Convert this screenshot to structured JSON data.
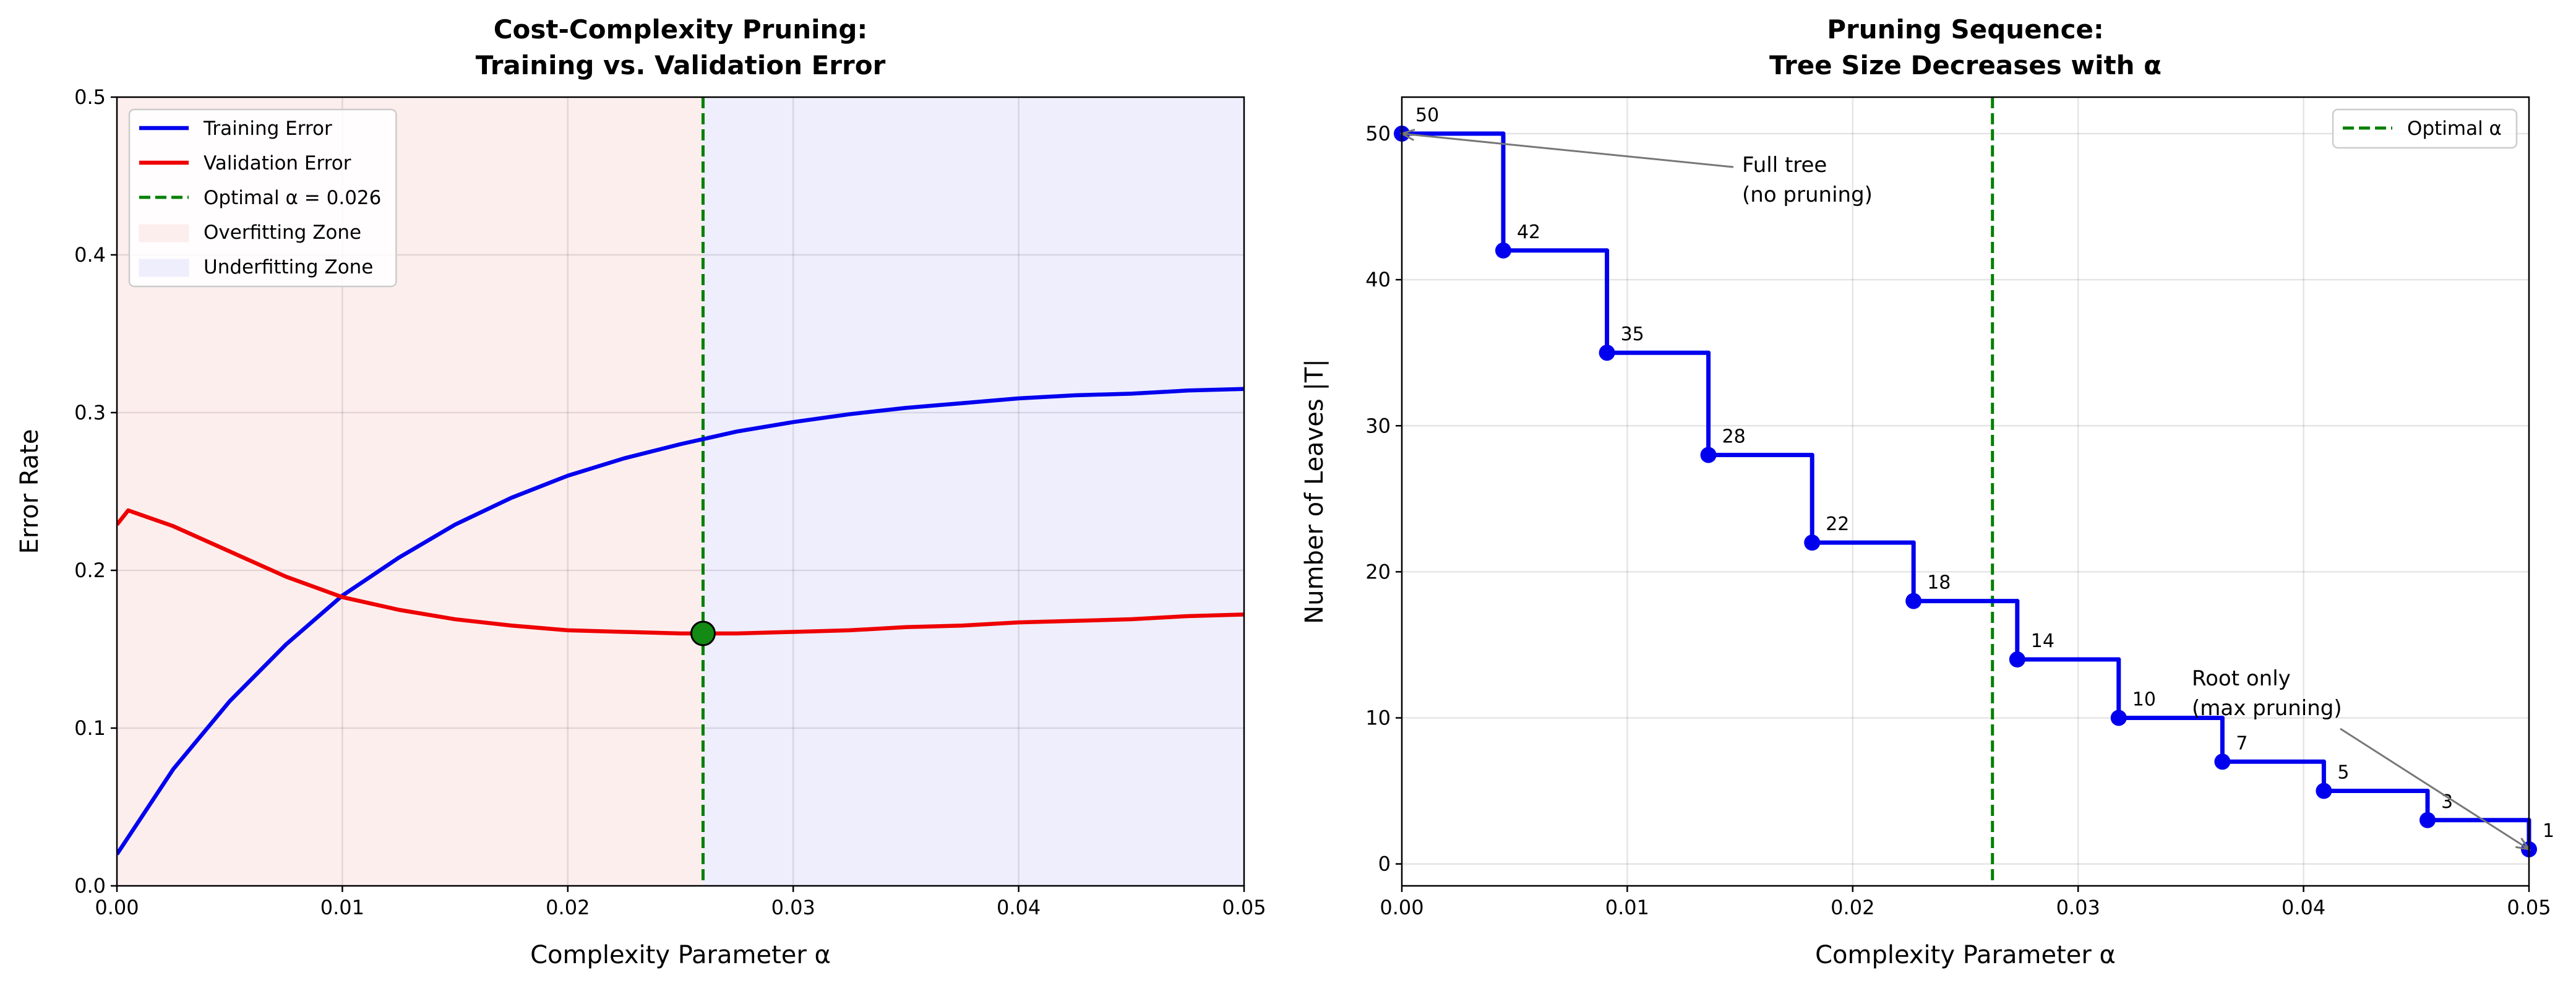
{
  "chart_data": [
    {
      "type": "line",
      "title": [
        "Cost-Complexity Pruning:",
        "Training vs. Validation Error"
      ],
      "xlabel": "Complexity Parameter α",
      "ylabel": "Error Rate",
      "xlim": [
        0,
        0.05
      ],
      "xticks": [
        {
          "value": 0,
          "label": "0.00"
        },
        0.01,
        0.02,
        0.03,
        0.04,
        0.05
      ],
      "ylim": [
        0,
        0.5
      ],
      "yticks": [
        {
          "value": 0,
          "label": "0.0"
        },
        0.1,
        0.2,
        0.3,
        0.4,
        0.5
      ],
      "grid": true,
      "legend": "upper left",
      "series": [
        {
          "name": "Training Error",
          "color": "#0000ee",
          "x": [
            0,
            0.0025,
            0.005,
            0.0075,
            0.01,
            0.0125,
            0.015,
            0.0175,
            0.02,
            0.0225,
            0.025,
            0.0275,
            0.03,
            0.0325,
            0.035,
            0.0375,
            0.04,
            0.0425,
            0.045,
            0.0475,
            0.05
          ],
          "values": [
            0.02,
            0.074,
            0.117,
            0.153,
            0.184,
            0.208,
            0.229,
            0.246,
            0.26,
            0.271,
            0.28,
            0.288,
            0.294,
            0.299,
            0.303,
            0.306,
            0.309,
            0.311,
            0.312,
            0.314,
            0.315
          ]
        },
        {
          "name": "Validation Error",
          "color": "#ee0000",
          "x": [
            0,
            0.0005,
            0.0025,
            0.005,
            0.0075,
            0.01,
            0.0125,
            0.015,
            0.0175,
            0.02,
            0.0225,
            0.025,
            0.0275,
            0.03,
            0.0325,
            0.035,
            0.0375,
            0.04,
            0.0425,
            0.045,
            0.0475,
            0.05
          ],
          "values": [
            0.229,
            0.238,
            0.228,
            0.212,
            0.196,
            0.183,
            0.175,
            0.169,
            0.165,
            0.162,
            0.161,
            0.16,
            0.16,
            0.161,
            0.162,
            0.164,
            0.165,
            0.167,
            0.168,
            0.169,
            0.171,
            0.172
          ]
        }
      ],
      "vlines": [
        {
          "name": "Optimal α = 0.026",
          "x": 0.026,
          "color": "#007f00"
        }
      ],
      "spans": [
        {
          "name": "Overfitting Zone",
          "x": [
            0,
            0.026
          ],
          "color": "#fdeeee"
        },
        {
          "name": "Underfitting Zone",
          "x": [
            0.026,
            0.05
          ],
          "color": "#eeeefd"
        }
      ],
      "marker": {
        "x": 0.026,
        "y": 0.16,
        "color": "#138a13"
      }
    },
    {
      "type": "step",
      "title": [
        "Pruning Sequence:",
        "Tree Size Decreases with α"
      ],
      "xlabel": "Complexity Parameter α",
      "ylabel": "Number of Leaves |T|",
      "xlim": [
        0,
        0.05
      ],
      "xticks": [
        {
          "value": 0,
          "label": "0.00"
        },
        0.01,
        0.02,
        0.03,
        0.04,
        0.05
      ],
      "ylim": [
        -1.5,
        52.5
      ],
      "yticks": [
        0,
        10,
        20,
        30,
        40,
        50
      ],
      "grid": true,
      "legend": "upper right",
      "color": "#0000ee",
      "x": [
        0,
        0.0045,
        0.0091,
        0.0136,
        0.0182,
        0.0227,
        0.0273,
        0.0318,
        0.0364,
        0.0409,
        0.0455,
        0.05
      ],
      "values": [
        50,
        42,
        35,
        28,
        22,
        18,
        14,
        10,
        7,
        5,
        3,
        1
      ],
      "vlines": [
        {
          "name": "Optimal α",
          "x": 0.0262,
          "color": "#007f00"
        }
      ],
      "annotations": [
        {
          "text": [
            "Full tree",
            "(no pruning)"
          ],
          "point": 0
        },
        {
          "text": [
            "Root only",
            "(max pruning)"
          ],
          "point": 11
        }
      ]
    }
  ]
}
